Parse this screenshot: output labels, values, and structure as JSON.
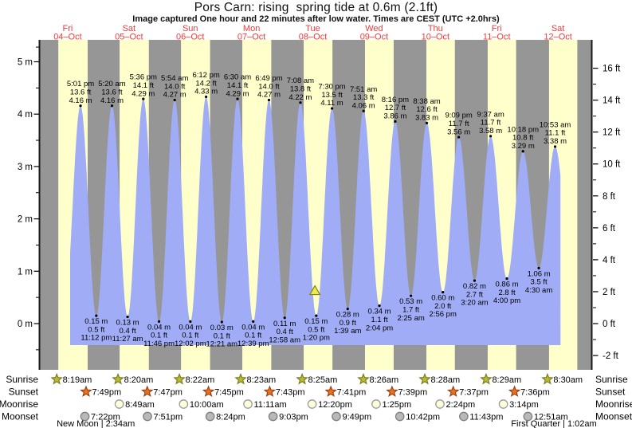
{
  "chart_data": {
    "type": "area",
    "title": "Pors Carn: rising  spring tide at 0.6m (2.1ft)",
    "subtitle": "Image captured One hour and 22 minutes after low water. Times are CEST (UTC +2.0hrs)",
    "days": [
      {
        "name": "Fri",
        "date": "04–Oct"
      },
      {
        "name": "Sat",
        "date": "05–Oct"
      },
      {
        "name": "Sun",
        "date": "06–Oct"
      },
      {
        "name": "Mon",
        "date": "07–Oct"
      },
      {
        "name": "Tue",
        "date": "08–Oct"
      },
      {
        "name": "Wed",
        "date": "09–Oct"
      },
      {
        "name": "Thu",
        "date": "10–Oct"
      },
      {
        "name": "Fri",
        "date": "11–Oct"
      },
      {
        "name": "Sat",
        "date": "12–Oct"
      }
    ],
    "y_axis_left": {
      "unit": "m",
      "ticks": [
        {
          "v": 5,
          "label": "5 m"
        },
        {
          "v": 4,
          "label": "4 m"
        },
        {
          "v": 3,
          "label": "3 m"
        },
        {
          "v": 2,
          "label": "2 m"
        },
        {
          "v": 1,
          "label": "1 m"
        },
        {
          "v": 0,
          "label": "0 m"
        }
      ]
    },
    "y_axis_right": {
      "unit": "ft",
      "ticks": [
        {
          "v": 16,
          "label": "16 ft"
        },
        {
          "v": 14,
          "label": "14 ft"
        },
        {
          "v": 12,
          "label": "12 ft"
        },
        {
          "v": 10,
          "label": "10 ft"
        },
        {
          "v": 8,
          "label": "8 ft"
        },
        {
          "v": 6,
          "label": "6 ft"
        },
        {
          "v": 4,
          "label": "4 ft"
        },
        {
          "v": 2,
          "label": "2 ft"
        },
        {
          "v": 0,
          "label": "0 ft"
        },
        {
          "v": -2,
          "label": "-2 ft"
        }
      ]
    },
    "high_tides": [
      {
        "time": "5:01 pm",
        "hour": 17.02,
        "m": "4.16",
        "ft": "13.6"
      },
      {
        "time": "5:20 am",
        "hour": 29.33,
        "m": "4.16",
        "ft": "13.6"
      },
      {
        "time": "5:36 pm",
        "hour": 41.6,
        "m": "4.29",
        "ft": "14.1"
      },
      {
        "time": "5:54 am",
        "hour": 53.9,
        "m": "4.27",
        "ft": "14.0"
      },
      {
        "time": "6:12 pm",
        "hour": 66.2,
        "m": "4.33",
        "ft": "14.2"
      },
      {
        "time": "6:30 am",
        "hour": 78.5,
        "m": "4.29",
        "ft": "14.1"
      },
      {
        "time": "6:49 pm",
        "hour": 90.82,
        "m": "4.27",
        "ft": "14.0"
      },
      {
        "time": "7:08 am",
        "hour": 103.13,
        "m": "4.22",
        "ft": "13.8"
      },
      {
        "time": "7:30 pm",
        "hour": 115.5,
        "m": "4.11",
        "ft": "13.5"
      },
      {
        "time": "7:51 am",
        "hour": 127.85,
        "m": "4.06",
        "ft": "13.3"
      },
      {
        "time": "8:16 pm",
        "hour": 140.27,
        "m": "3.86",
        "ft": "12.7"
      },
      {
        "time": "8:38 am",
        "hour": 152.63,
        "m": "3.83",
        "ft": "12.6"
      },
      {
        "time": "9:09 pm",
        "hour": 165.15,
        "m": "3.56",
        "ft": "11.7"
      },
      {
        "time": "9:37 am",
        "hour": 177.62,
        "m": "3.58",
        "ft": "11.7"
      },
      {
        "time": "10:18 pm",
        "hour": 190.3,
        "m": "3.29",
        "ft": "10.8"
      },
      {
        "time": "10:53 am",
        "hour": 202.88,
        "m": "3.38",
        "ft": "11.1"
      }
    ],
    "low_tides": [
      {
        "time": "11:12 pm",
        "hour": 23.2,
        "m": "0.15",
        "ft": "0.5"
      },
      {
        "time": "11:27 am",
        "hour": 35.45,
        "m": "0.13",
        "ft": "0.4"
      },
      {
        "time": "11:46 pm",
        "hour": 47.77,
        "m": "0.04",
        "ft": "0.1"
      },
      {
        "time": "12:02 pm",
        "hour": 60.03,
        "m": "0.04",
        "ft": "0.1"
      },
      {
        "time": "12:21 am",
        "hour": 72.35,
        "m": "0.03",
        "ft": "0.1"
      },
      {
        "time": "12:39 pm",
        "hour": 84.65,
        "m": "0.04",
        "ft": "0.1"
      },
      {
        "time": "12:58 am",
        "hour": 96.97,
        "m": "0.11",
        "ft": "0.4"
      },
      {
        "time": "1:20 pm",
        "hour": 109.33,
        "m": "0.15",
        "ft": "0.5"
      },
      {
        "time": "1:39 am",
        "hour": 121.65,
        "m": "0.28",
        "ft": "0.9"
      },
      {
        "time": "2:04 pm",
        "hour": 134.07,
        "m": "0.34",
        "ft": "1.1"
      },
      {
        "time": "2:25 am",
        "hour": 146.42,
        "m": "0.53",
        "ft": "1.7"
      },
      {
        "time": "2:56 pm",
        "hour": 158.93,
        "m": "0.60",
        "ft": "2.0"
      },
      {
        "time": "3:20 am",
        "hour": 171.33,
        "m": "0.82",
        "ft": "2.7"
      },
      {
        "time": "4:00 pm",
        "hour": 184.0,
        "m": "0.86",
        "ft": "2.8"
      },
      {
        "time": "4:30 am",
        "hour": 196.5,
        "m": "1.06",
        "ft": "3.5"
      }
    ],
    "current_level_marker": {
      "m": "0.6",
      "ft": "2.1",
      "hour": 108.8
    }
  },
  "astro": {
    "rows": [
      {
        "key": "sunrise",
        "label": "Sunrise",
        "icon": "sun-star",
        "events": [
          {
            "time": "8:19am",
            "hour": 8.32
          },
          {
            "time": "8:20am",
            "hour": 32.33
          },
          {
            "time": "8:22am",
            "hour": 56.37
          },
          {
            "time": "8:23am",
            "hour": 80.38
          },
          {
            "time": "8:25am",
            "hour": 104.42
          },
          {
            "time": "8:26am",
            "hour": 128.43
          },
          {
            "time": "8:28am",
            "hour": 152.47
          },
          {
            "time": "8:29am",
            "hour": 176.48
          },
          {
            "time": "8:30am",
            "hour": 200.5
          }
        ]
      },
      {
        "key": "sunset",
        "label": "Sunset",
        "icon": "sun-star",
        "events": [
          {
            "time": "7:49pm",
            "hour": 19.82
          },
          {
            "time": "7:47pm",
            "hour": 43.78
          },
          {
            "time": "7:45pm",
            "hour": 67.75
          },
          {
            "time": "7:43pm",
            "hour": 91.72
          },
          {
            "time": "7:41pm",
            "hour": 115.68
          },
          {
            "time": "7:39pm",
            "hour": 139.65
          },
          {
            "time": "7:37pm",
            "hour": 163.62
          },
          {
            "time": "7:36pm",
            "hour": 187.6
          }
        ]
      },
      {
        "key": "moonrise",
        "label": "Moonrise",
        "icon": "moon-circle",
        "events": [
          {
            "time": "8:49am",
            "hour": 32.82
          },
          {
            "time": "10:00am",
            "hour": 58.0
          },
          {
            "time": "11:11am",
            "hour": 83.18
          },
          {
            "time": "12:20pm",
            "hour": 108.33
          },
          {
            "time": "1:25pm",
            "hour": 133.42
          },
          {
            "time": "2:24pm",
            "hour": 158.4
          },
          {
            "time": "3:14pm",
            "hour": 183.23
          }
        ]
      },
      {
        "key": "moonset",
        "label": "Moonset",
        "icon": "moon-circle",
        "events": [
          {
            "time": "7:22pm",
            "hour": 19.37
          },
          {
            "time": "7:51pm",
            "hour": 43.85
          },
          {
            "time": "8:24pm",
            "hour": 68.4
          },
          {
            "time": "9:03pm",
            "hour": 93.05
          },
          {
            "time": "9:49pm",
            "hour": 117.82
          },
          {
            "time": "10:42pm",
            "hour": 142.7
          },
          {
            "time": "11:43pm",
            "hour": 167.72
          },
          {
            "time": "12:51am",
            "hour": 192.85
          }
        ]
      }
    ],
    "phases": [
      {
        "label": "New Moon | 2:34am",
        "hour": 23.0
      },
      {
        "label": "First Quarter | 1:02am",
        "hour": 202.4
      }
    ]
  },
  "colors": {
    "night_band": "#969696",
    "day_band": "#ffffcc",
    "tide_fill": "#a0acf6",
    "date_label": "#ee3b3b",
    "sunrise_icon": "#b9ba33",
    "sunrise_icon_border": "#77771e",
    "sunset_icon": "#e8731f",
    "sunset_icon_border": "#993b12",
    "moonrise_icon": "#ffffdc",
    "moonrise_icon_border": "#9a9a9a",
    "moonset_icon": "#b9b9b9",
    "moonset_icon_border": "#7f7f7f",
    "marker": "#ebeb57",
    "marker_border": "#84840a",
    "axis": "#1a1a1a",
    "text": "#000000"
  }
}
